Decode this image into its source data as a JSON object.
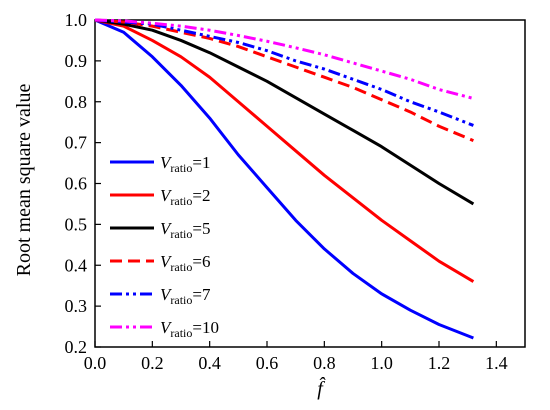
{
  "chart_data": {
    "type": "line",
    "xlabel": "f̂",
    "ylabel": "Root mean square value",
    "xlim": [
      0.0,
      1.5
    ],
    "ylim": [
      0.2,
      1.0
    ],
    "xticks": [
      "0.0",
      "0.2",
      "0.4",
      "0.6",
      "0.8",
      "1.0",
      "1.2",
      "1.4"
    ],
    "yticks": [
      "0.2",
      "0.3",
      "0.4",
      "0.5",
      "0.6",
      "0.7",
      "0.8",
      "0.9",
      "1.0"
    ],
    "grid": false,
    "legend_position": "bottom-left",
    "x": [
      0.0,
      0.1,
      0.2,
      0.3,
      0.4,
      0.5,
      0.6,
      0.7,
      0.8,
      0.9,
      1.0,
      1.1,
      1.2,
      1.32
    ],
    "series": [
      {
        "name": "V",
        "subscript": "ratio",
        "suffix": "=1",
        "color": "#0000ff",
        "dash": "solid",
        "values": [
          1.0,
          0.97,
          0.91,
          0.84,
          0.76,
          0.67,
          0.59,
          0.51,
          0.44,
          0.38,
          0.33,
          0.29,
          0.255,
          0.222
        ]
      },
      {
        "name": "V",
        "subscript": "ratio",
        "suffix": "=2",
        "color": "#ff0000",
        "dash": "solid",
        "values": [
          1.0,
          0.985,
          0.95,
          0.91,
          0.86,
          0.8,
          0.74,
          0.68,
          0.62,
          0.565,
          0.51,
          0.46,
          0.41,
          0.36
        ]
      },
      {
        "name": "V",
        "subscript": "ratio",
        "suffix": "=5",
        "color": "#000000",
        "dash": "solid",
        "values": [
          1.0,
          0.99,
          0.975,
          0.95,
          0.92,
          0.885,
          0.85,
          0.81,
          0.77,
          0.73,
          0.69,
          0.645,
          0.6,
          0.55
        ]
      },
      {
        "name": "V",
        "subscript": "ratio",
        "suffix": "=6",
        "color": "#ff0000",
        "dash": "dashed",
        "values": [
          1.0,
          0.995,
          0.985,
          0.97,
          0.955,
          0.935,
          0.91,
          0.885,
          0.86,
          0.835,
          0.805,
          0.775,
          0.74,
          0.705
        ]
      },
      {
        "name": "V",
        "subscript": "ratio",
        "suffix": "=7",
        "color": "#0000ff",
        "dash": "dashdotdot",
        "values": [
          1.0,
          0.995,
          0.99,
          0.975,
          0.96,
          0.945,
          0.925,
          0.9,
          0.88,
          0.855,
          0.83,
          0.8,
          0.775,
          0.742
        ]
      },
      {
        "name": "V",
        "subscript": "ratio",
        "suffix": "=10",
        "color": "#ff00ff",
        "dash": "dashdotdot",
        "values": [
          1.0,
          0.998,
          0.992,
          0.985,
          0.975,
          0.962,
          0.948,
          0.932,
          0.915,
          0.895,
          0.875,
          0.855,
          0.83,
          0.808
        ]
      }
    ]
  }
}
